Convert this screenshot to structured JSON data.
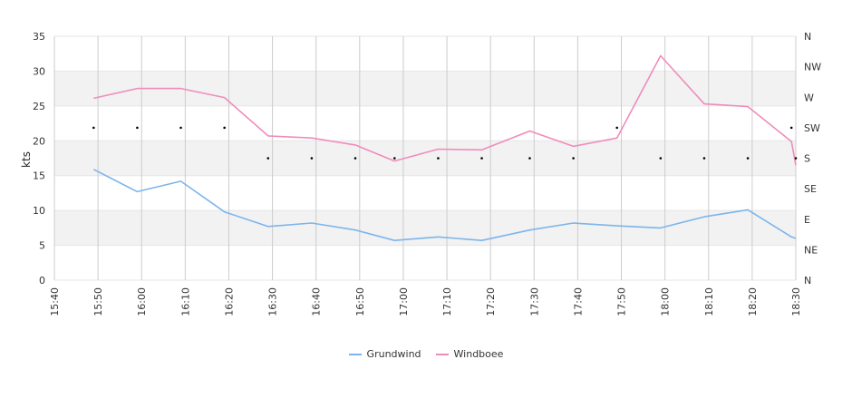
{
  "chart_data": {
    "type": "line",
    "ylabel": "kts",
    "ylim": [
      0,
      35
    ],
    "yticks": [
      "0",
      "5",
      "10",
      "15",
      "20",
      "25",
      "30",
      "35"
    ],
    "x_labels": [
      "15:40",
      "15:50",
      "16:00",
      "16:10",
      "16:20",
      "16:30",
      "16:40",
      "16:50",
      "17:00",
      "17:10",
      "17:20",
      "17:30",
      "17:40",
      "17:50",
      "18:00",
      "18:10",
      "18:20",
      "18:30"
    ],
    "x": [
      "15:49",
      "15:59",
      "16:09",
      "16:19",
      "16:29",
      "16:39",
      "16:49",
      "16:58",
      "17:08",
      "17:18",
      "17:29",
      "17:39",
      "17:49",
      "17:59",
      "18:09",
      "18:19",
      "18:29",
      "18:30"
    ],
    "series": [
      {
        "name": "Grundwind",
        "color": "#7cb5ec",
        "values": [
          15.9,
          12.7,
          14.2,
          9.8,
          7.7,
          8.2,
          7.2,
          5.7,
          6.2,
          5.7,
          7.2,
          8.2,
          7.8,
          7.5,
          9.1,
          10.1,
          6.2,
          6.0
        ]
      },
      {
        "name": "Windboee",
        "color": "#f08cbb",
        "values": [
          26.1,
          27.5,
          27.5,
          26.2,
          20.7,
          20.4,
          19.4,
          17.1,
          18.8,
          18.7,
          21.4,
          19.2,
          20.4,
          32.2,
          25.3,
          24.9,
          19.9,
          16.5
        ]
      }
    ],
    "direction_axis": [
      "N",
      "NE",
      "E",
      "SE",
      "S",
      "SW",
      "W",
      "NW",
      "N"
    ],
    "direction_points": [
      {
        "x": "15:49",
        "dir": "SW"
      },
      {
        "x": "15:59",
        "dir": "SW"
      },
      {
        "x": "16:09",
        "dir": "SW"
      },
      {
        "x": "16:19",
        "dir": "SW"
      },
      {
        "x": "16:29",
        "dir": "S"
      },
      {
        "x": "16:39",
        "dir": "S"
      },
      {
        "x": "16:49",
        "dir": "S"
      },
      {
        "x": "16:58",
        "dir": "S"
      },
      {
        "x": "17:08",
        "dir": "S"
      },
      {
        "x": "17:18",
        "dir": "S"
      },
      {
        "x": "17:29",
        "dir": "S"
      },
      {
        "x": "17:39",
        "dir": "S"
      },
      {
        "x": "17:49",
        "dir": "SW"
      },
      {
        "x": "17:59",
        "dir": "S"
      },
      {
        "x": "18:09",
        "dir": "S"
      },
      {
        "x": "18:19",
        "dir": "S"
      },
      {
        "x": "18:29",
        "dir": "SW"
      },
      {
        "x": "18:30",
        "dir": "S"
      }
    ],
    "grid": true,
    "legend_position": "bottom-center"
  }
}
